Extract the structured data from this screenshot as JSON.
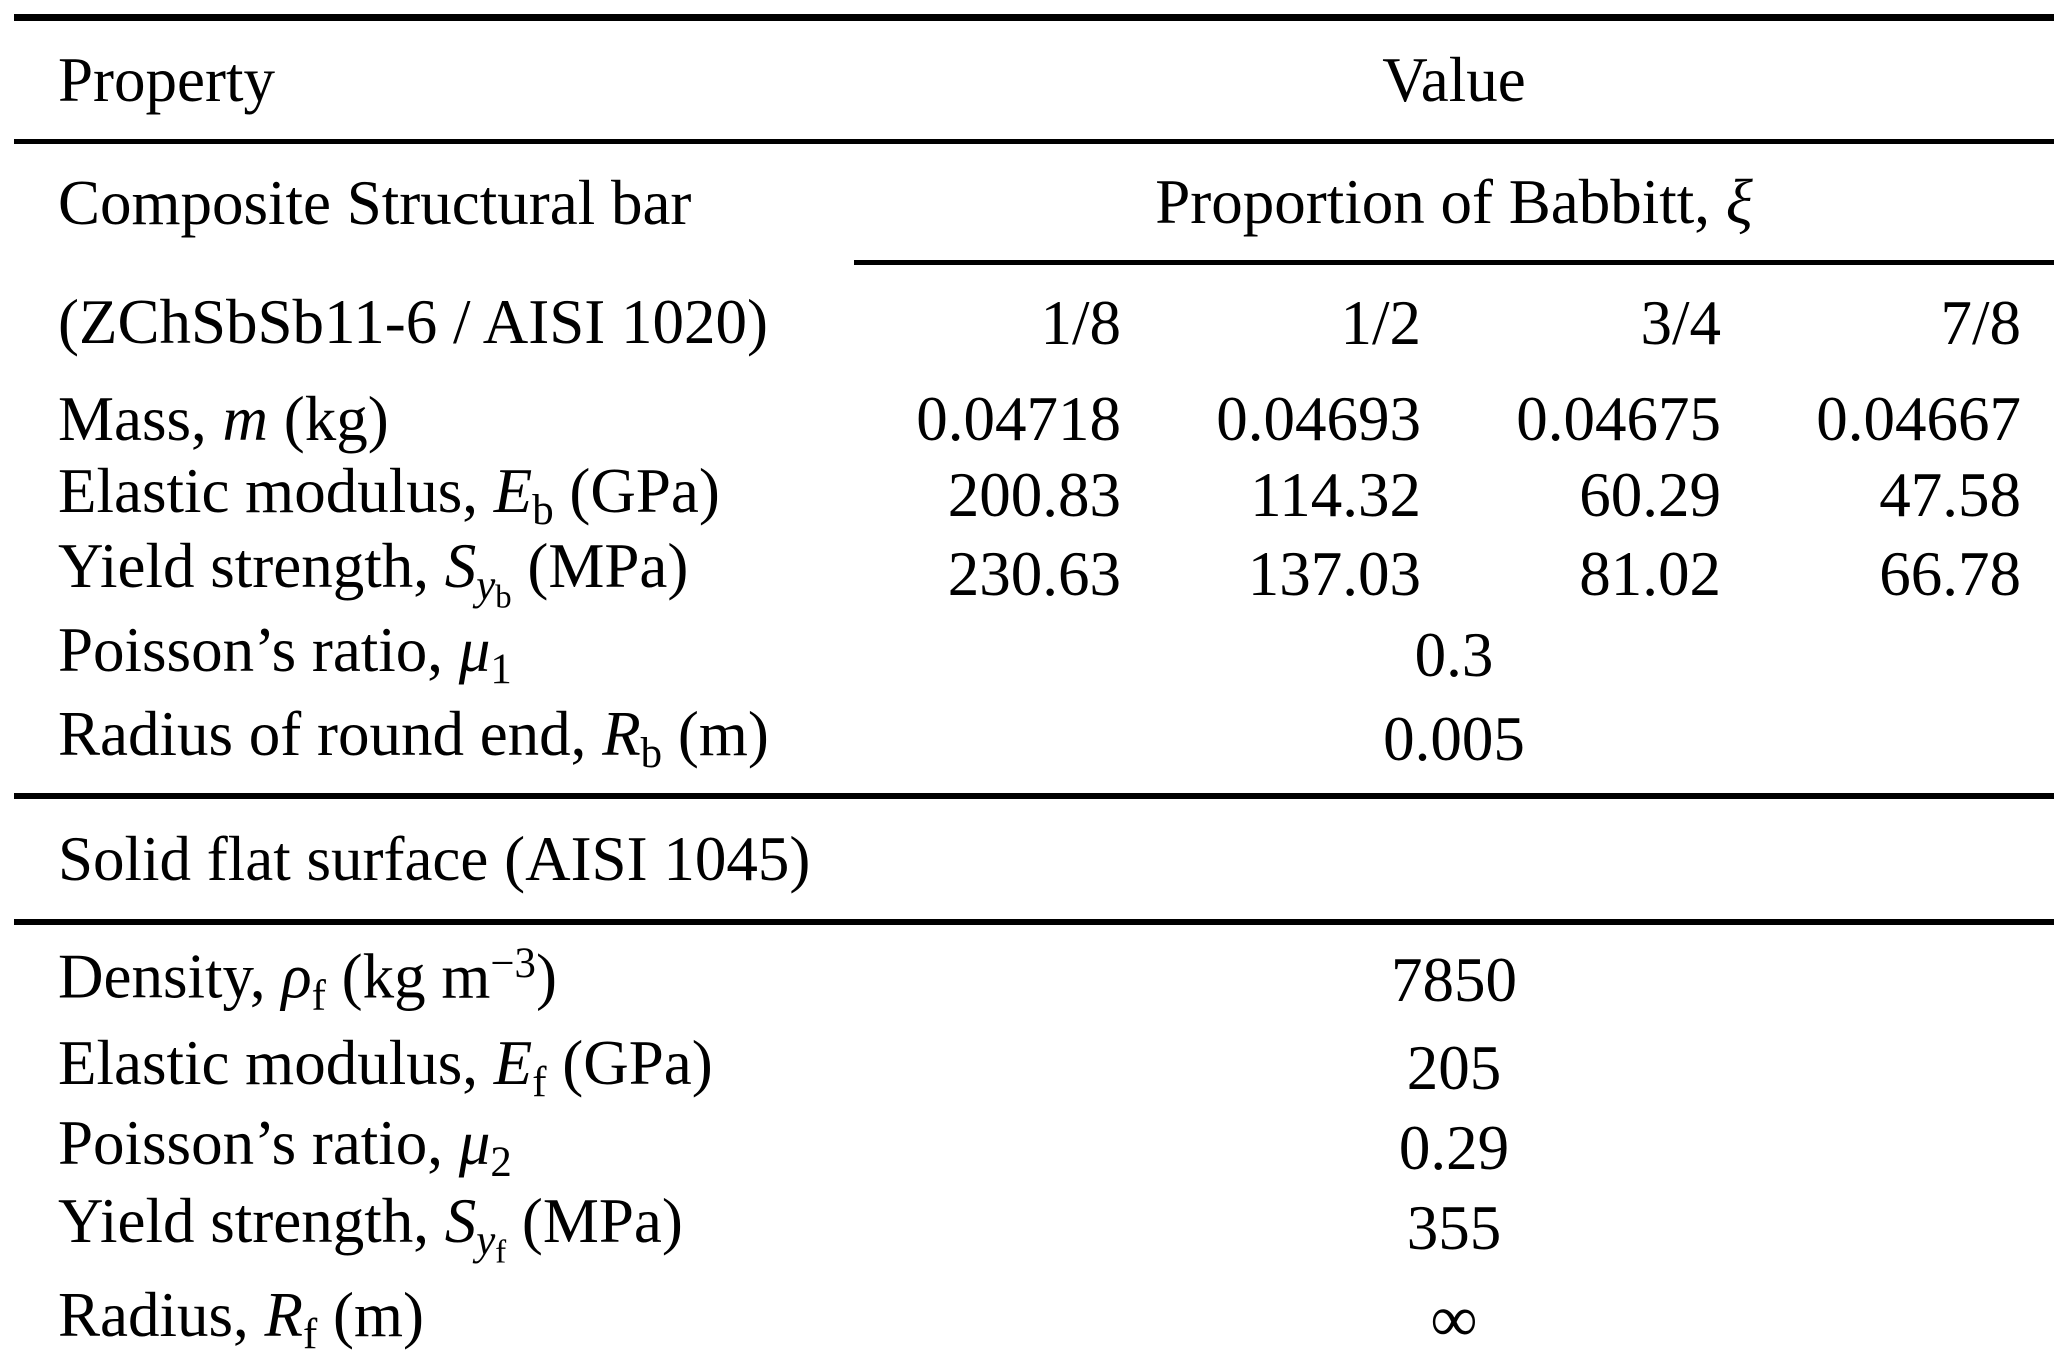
{
  "colors": {
    "text": "#000000",
    "background": "#ffffff"
  },
  "table": {
    "header": {
      "property": "Property",
      "value": "Value"
    },
    "bar_section": {
      "title": "Composite Structural bar",
      "subheader_rich": [
        {
          "s": "r",
          "v": "Proportion of Babbitt, "
        },
        {
          "s": "i",
          "v": "ξ"
        }
      ],
      "material": "(ZChSbSb11-6 / AISI 1020)",
      "fractions": [
        "1/8",
        "1/2",
        "3/4",
        "7/8"
      ],
      "rows": [
        {
          "label_rich": [
            {
              "s": "r",
              "v": "Mass, "
            },
            {
              "s": "i",
              "v": "m"
            },
            {
              "s": "r",
              "v": " (kg)"
            }
          ],
          "values": [
            "0.04718",
            "0.04693",
            "0.04675",
            "0.04667"
          ]
        },
        {
          "label_rich": [
            {
              "s": "r",
              "v": "Elastic modulus, "
            },
            {
              "s": "i",
              "v": "E"
            },
            {
              "s": "sub",
              "v": "b"
            },
            {
              "s": "r",
              "v": " (GPa)"
            }
          ],
          "values": [
            "200.83",
            "114.32",
            "60.29",
            "47.58"
          ]
        },
        {
          "label_rich": [
            {
              "s": "r",
              "v": "Yield strength, "
            },
            {
              "s": "i",
              "v": "S"
            },
            {
              "s": "isub",
              "v": "y"
            },
            {
              "s": "subsub",
              "v": "b"
            },
            {
              "s": "r",
              "v": " (MPa)"
            }
          ],
          "values": [
            "230.63",
            "137.03",
            "81.02",
            "66.78"
          ]
        }
      ],
      "span_rows": [
        {
          "label_rich": [
            {
              "s": "r",
              "v": "Poisson’s ratio, "
            },
            {
              "s": "i",
              "v": "μ"
            },
            {
              "s": "sub",
              "v": "1"
            }
          ],
          "value": "0.3"
        },
        {
          "label_rich": [
            {
              "s": "r",
              "v": "Radius of round end, "
            },
            {
              "s": "i",
              "v": "R"
            },
            {
              "s": "sub",
              "v": "b"
            },
            {
              "s": "r",
              "v": " (m)"
            }
          ],
          "value": "0.005"
        }
      ]
    },
    "flat_section": {
      "title": "Solid flat surface (AISI 1045)",
      "span_rows": [
        {
          "label_rich": [
            {
              "s": "r",
              "v": "Density, "
            },
            {
              "s": "i",
              "v": "ρ"
            },
            {
              "s": "sub",
              "v": "f"
            },
            {
              "s": "r",
              "v": " (kg m"
            },
            {
              "s": "sup",
              "v": "−3"
            },
            {
              "s": "r",
              "v": ")"
            }
          ],
          "value": "7850"
        },
        {
          "label_rich": [
            {
              "s": "r",
              "v": "Elastic modulus, "
            },
            {
              "s": "i",
              "v": "E"
            },
            {
              "s": "sub",
              "v": "f"
            },
            {
              "s": "r",
              "v": " (GPa)"
            }
          ],
          "value": "205"
        },
        {
          "label_rich": [
            {
              "s": "r",
              "v": "Poisson’s ratio, "
            },
            {
              "s": "i",
              "v": "μ"
            },
            {
              "s": "sub",
              "v": "2"
            }
          ],
          "value": "0.29"
        },
        {
          "label_rich": [
            {
              "s": "r",
              "v": "Yield strength, "
            },
            {
              "s": "i",
              "v": "S"
            },
            {
              "s": "isub",
              "v": "y"
            },
            {
              "s": "subsub",
              "v": "f"
            },
            {
              "s": "r",
              "v": " (MPa)"
            }
          ],
          "value": "355"
        },
        {
          "label_rich": [
            {
              "s": "r",
              "v": "Radius, "
            },
            {
              "s": "i",
              "v": "R"
            },
            {
              "s": "sub",
              "v": "f"
            },
            {
              "s": "r",
              "v": " (m)"
            }
          ],
          "value": "∞"
        }
      ]
    }
  }
}
